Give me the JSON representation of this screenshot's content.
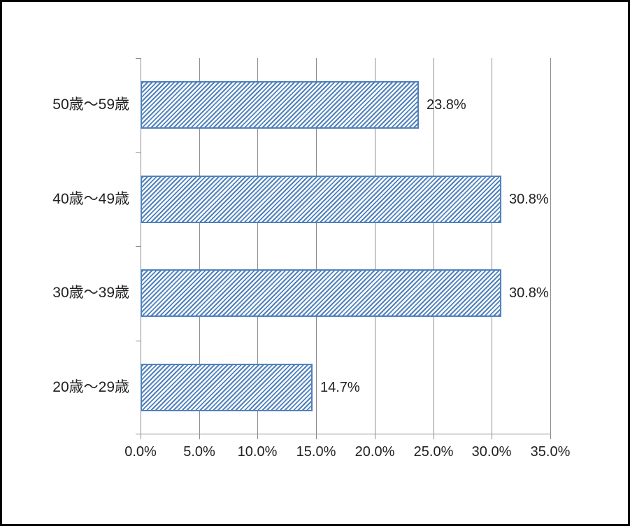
{
  "chart_data": {
    "type": "bar",
    "orientation": "horizontal",
    "categories": [
      "50歳〜59歳",
      "40歳〜49歳",
      "30歳〜39歳",
      "20歳〜29歳"
    ],
    "values": [
      23.8,
      30.8,
      30.8,
      14.7
    ],
    "data_labels": [
      "23.8%",
      "30.8%",
      "30.8%",
      "14.7%"
    ],
    "x_ticks": [
      {
        "value": 0,
        "label": "0.0%"
      },
      {
        "value": 5,
        "label": "5.0%"
      },
      {
        "value": 10,
        "label": "10.0%"
      },
      {
        "value": 15,
        "label": "15.0%"
      },
      {
        "value": 20,
        "label": "20.0%"
      },
      {
        "value": 25,
        "label": "25.0%"
      },
      {
        "value": 30,
        "label": "30.0%"
      },
      {
        "value": 35,
        "label": "35.0%"
      }
    ],
    "xlim": [
      0,
      35
    ],
    "grid": true,
    "legend": false,
    "bar_pattern": "diagonal-hatch-upward"
  },
  "colors": {
    "bar_hatch": "#4f81bd",
    "bar_border": "#4f81bd",
    "gridline": "#8c8c8c",
    "axis_line": "#8c8c8c",
    "label_text": "#212121",
    "frame_border": "#000000",
    "background": "#ffffff"
  }
}
